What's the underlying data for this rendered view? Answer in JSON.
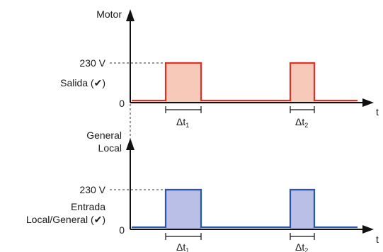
{
  "colors": {
    "output_stroke": "#e0302a",
    "output_fill": "#f6c9b8",
    "input_stroke": "#2a55a8",
    "input_fill": "#b9bfe6",
    "axis": "#111111"
  },
  "top_panel": {
    "y_axis_label": "Motor",
    "level_label": "230 V",
    "signal_label": "Salida (✔)",
    "zero_label": "0",
    "x_axis_label": "t",
    "dt1_base": "Δt",
    "dt1_sub": "1",
    "dt2_base": "Δt",
    "dt2_sub": "2"
  },
  "bottom_panel": {
    "y_axis_label_line1": "General",
    "y_axis_label_line2": "Local",
    "level_label": "230 V",
    "signal_label_line1": "Entrada",
    "signal_label_line2": "Local/General (✔)",
    "zero_label": "0",
    "x_axis_label": "t",
    "dt1_base": "Δt",
    "dt1_sub": "1",
    "dt2_base": "Δt",
    "dt2_sub": "2"
  }
}
